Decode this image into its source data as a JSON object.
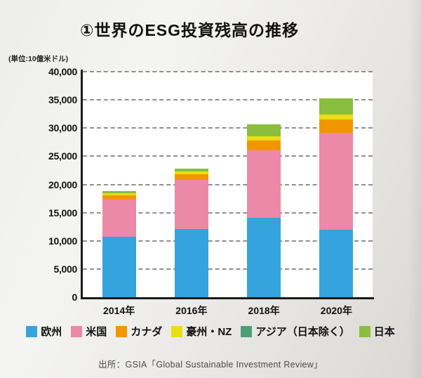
{
  "page": {
    "title": "①世界のESG投資残高の推移",
    "unit_label": "(単位:10億米ドル)",
    "source": "出所：GSIA「Global Sustainable Investment Review」"
  },
  "colors": {
    "axis": "#1b1b1b",
    "gridline": "#8f8f8f",
    "plot_background": "#ffffff",
    "europe": "#35a3dd",
    "usa": "#ec88a8",
    "canada": "#f29600",
    "australia_nz": "#e9df15",
    "asia_ex_japan": "#4d9e77",
    "japan": "#8abe3e"
  },
  "chart_data": {
    "type": "bar",
    "stacked": true,
    "title": "①世界のESG投資残高の推移",
    "unit": "10億米ドル",
    "categories": [
      "2014年",
      "2016年",
      "2018年",
      "2020年"
    ],
    "series": [
      {
        "id": "europe",
        "name": "欧州",
        "color": "#35a3dd",
        "values": [
          10775,
          12040,
          14075,
          12017
        ]
      },
      {
        "id": "usa",
        "name": "米国",
        "color": "#ec88a8",
        "values": [
          6572,
          8723,
          11995,
          17081
        ]
      },
      {
        "id": "canada",
        "name": "カナダ",
        "color": "#f29600",
        "values": [
          729,
          1086,
          1699,
          2423
        ]
      },
      {
        "id": "australia-nz",
        "name": "豪州・NZ",
        "color": "#e9df15",
        "values": [
          350,
          516,
          734,
          906
        ]
      },
      {
        "id": "asia-ex-japan",
        "name": "アジア（日本除く）",
        "color": "#4d9e77",
        "values": [
          0,
          0,
          0,
          0
        ]
      },
      {
        "id": "japan",
        "name": "日本",
        "color": "#8abe3e",
        "values": [
          450,
          474,
          2180,
          2874
        ]
      }
    ],
    "totals": [
      18876,
      22839,
      30683,
      35301
    ],
    "ylim": [
      0,
      40000
    ],
    "ytick_step": 5000,
    "ytick_labels": [
      "0",
      "5,000",
      "10,000",
      "15,000",
      "20,000",
      "25,000",
      "30,000",
      "35,000",
      "40,000"
    ],
    "grid": true,
    "gridline_style": "dashed",
    "legend_position": "bottom",
    "xlabel": "",
    "ylabel": "(単位:10億米ドル)"
  }
}
